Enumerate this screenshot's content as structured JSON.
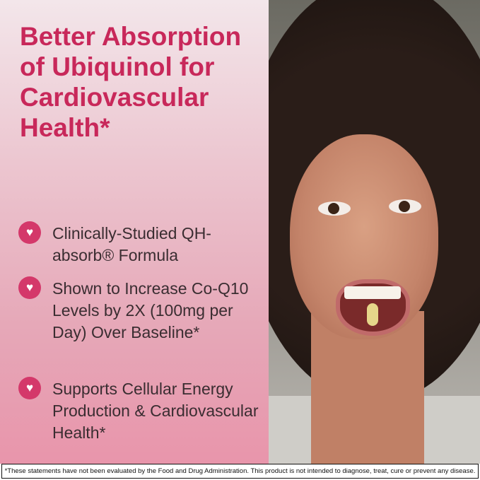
{
  "headline": "Better Absorption of Ubiquinol for Cardiovascular Health*",
  "benefits": [
    {
      "icon": "heart-icon",
      "text": "Clinically-Studied QH-absorb® Formula"
    },
    {
      "icon": "heart-icon",
      "text": "Shown to Increase Co-Q10 Levels by 2X (100mg per Day) Over Baseline*"
    },
    {
      "icon": "heart-icon",
      "text": "Supports Cellular Energy Production & Cardiovascular Health*"
    }
  ],
  "disclaimer": "*These statements have not been evaluated by the Food and Drug Administration. This product is not intended to diagnose, treat, cure or prevent any disease.",
  "colors": {
    "accent": "#c8285a",
    "icon_bg": "#d4386a"
  }
}
